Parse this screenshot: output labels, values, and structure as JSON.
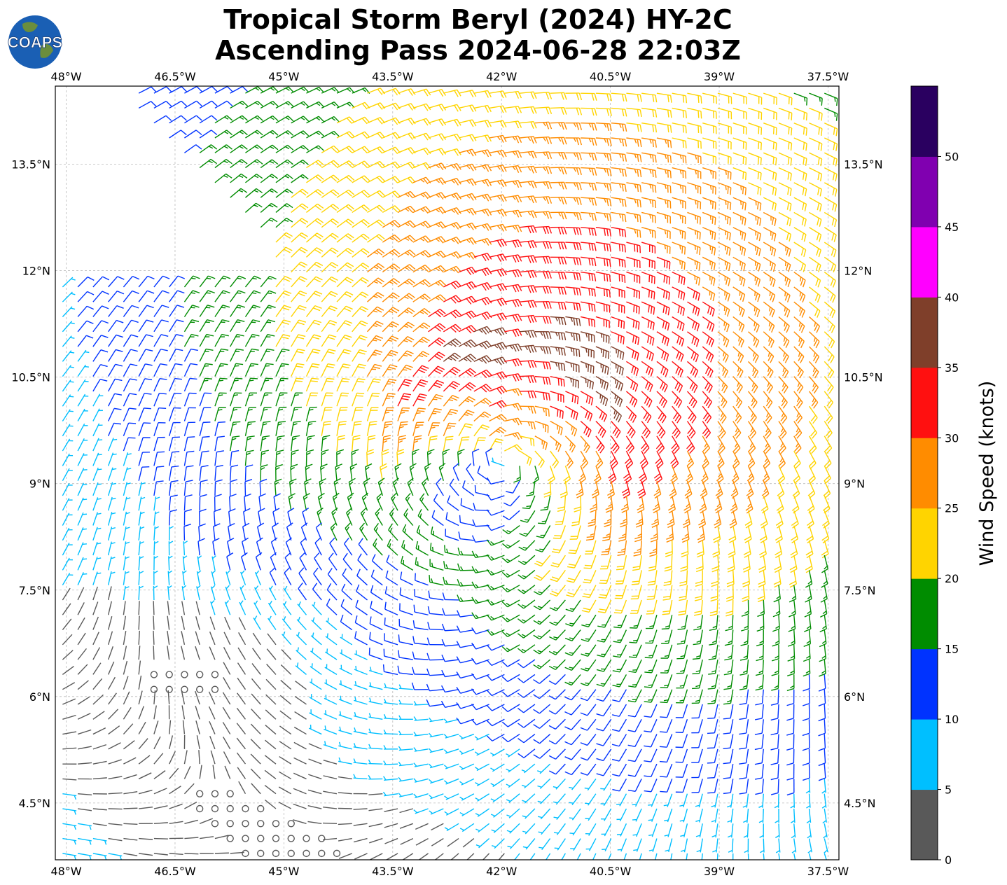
{
  "title": {
    "line1": "Tropical Storm Beryl (2024) HY-2C",
    "line2": "Ascending Pass 2024-06-28 22:03Z"
  },
  "logo": {
    "text": "COAPS",
    "ocean_color": "#1a5fb4",
    "land_color": "#6b8e3d"
  },
  "map": {
    "lon_range": [
      -48.15,
      -37.35
    ],
    "lat_range": [
      3.7,
      14.6
    ],
    "lon_ticks": [
      {
        "value": -48.0,
        "label": "48°W"
      },
      {
        "value": -46.5,
        "label": "46.5°W"
      },
      {
        "value": -45.0,
        "label": "45°W"
      },
      {
        "value": -43.5,
        "label": "43.5°W"
      },
      {
        "value": -42.0,
        "label": "42°W"
      },
      {
        "value": -40.5,
        "label": "40.5°W"
      },
      {
        "value": -39.0,
        "label": "39°W"
      },
      {
        "value": -37.5,
        "label": "37.5°W"
      }
    ],
    "lat_ticks": [
      {
        "value": 13.5,
        "label": "13.5°N"
      },
      {
        "value": 12.0,
        "label": "12°N"
      },
      {
        "value": 10.5,
        "label": "10.5°N"
      },
      {
        "value": 9.0,
        "label": "9°N"
      },
      {
        "value": 7.5,
        "label": "7.5°N"
      },
      {
        "value": 6.0,
        "label": "6°N"
      },
      {
        "value": 4.5,
        "label": "4.5°N"
      }
    ],
    "gridlines": true,
    "storm_center": {
      "lon": -41.9,
      "lat": 9.35
    }
  },
  "colorbar": {
    "label": "Wind Speed (knots)",
    "ticks": [
      "0",
      "5",
      "10",
      "15",
      "20",
      "25",
      "30",
      "35",
      "40",
      "45",
      "50"
    ],
    "bins": [
      {
        "min": 0,
        "max": 5,
        "color": "#595959"
      },
      {
        "min": 5,
        "max": 10,
        "color": "#00bfff"
      },
      {
        "min": 10,
        "max": 15,
        "color": "#0033ff"
      },
      {
        "min": 15,
        "max": 20,
        "color": "#008c00"
      },
      {
        "min": 20,
        "max": 25,
        "color": "#ffd400"
      },
      {
        "min": 25,
        "max": 30,
        "color": "#ff8c00"
      },
      {
        "min": 30,
        "max": 35,
        "color": "#ff1010"
      },
      {
        "min": 35,
        "max": 40,
        "color": "#7f3f2a"
      },
      {
        "min": 40,
        "max": 45,
        "color": "#ff00ff"
      },
      {
        "min": 45,
        "max": 50,
        "color": "#8000b0"
      },
      {
        "min": 50,
        "max": 55,
        "color": "#2a0060"
      }
    ]
  }
}
